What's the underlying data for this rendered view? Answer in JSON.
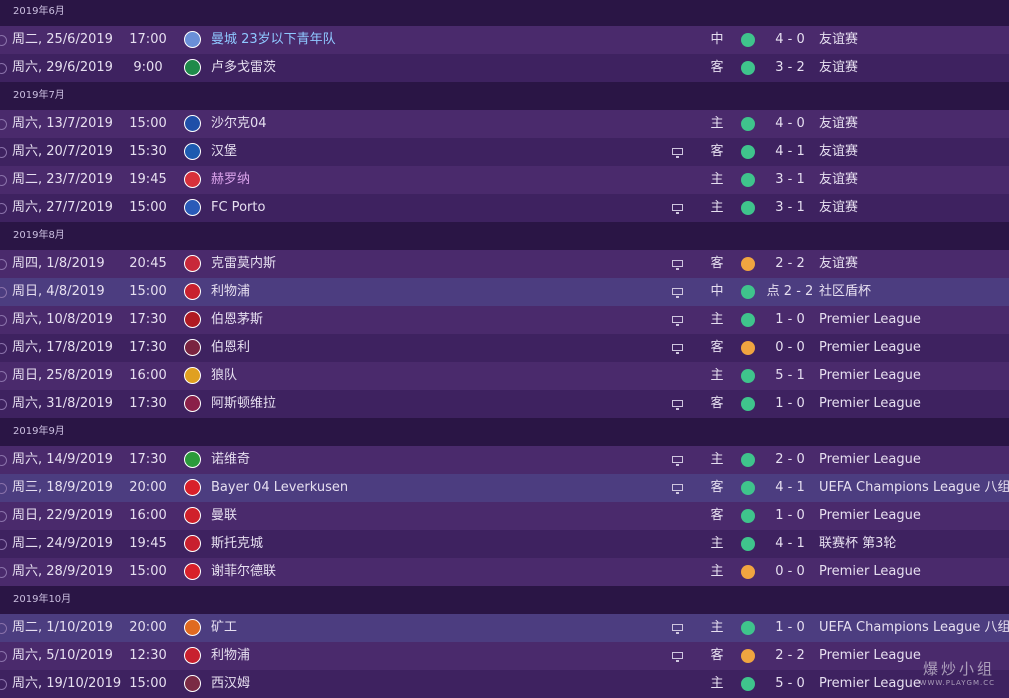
{
  "months": [
    {
      "label": "2019年6月",
      "rows": [
        {
          "date": "周二, 25/6/2019",
          "time": "17:00",
          "opponent": "曼城 23岁以下青年队",
          "opp_color": "#8fc8ff",
          "badge": "#6a8fd8",
          "tv": false,
          "venue": "中",
          "result_color": "#3fc48c",
          "score": "4 - 0",
          "competition": "友谊赛"
        },
        {
          "date": "周六, 29/6/2019",
          "time": "9:00",
          "opponent": "卢多戈雷茨",
          "opp_color": "#e6dff0",
          "badge": "#1f8a4a",
          "tv": false,
          "venue": "客",
          "result_color": "#3fc48c",
          "score": "3 - 2",
          "competition": "友谊赛"
        }
      ]
    },
    {
      "label": "2019年7月",
      "rows": [
        {
          "date": "周六, 13/7/2019",
          "time": "15:00",
          "opponent": "沙尔克04",
          "opp_color": "#e6dff0",
          "badge": "#1f4fa8",
          "tv": false,
          "venue": "主",
          "result_color": "#3fc48c",
          "score": "4 - 0",
          "competition": "友谊赛"
        },
        {
          "date": "周六, 20/7/2019",
          "time": "15:30",
          "opponent": "汉堡",
          "opp_color": "#e6dff0",
          "badge": "#1d5bb0",
          "tv": true,
          "venue": "客",
          "result_color": "#3fc48c",
          "score": "4 - 1",
          "competition": "友谊赛"
        },
        {
          "date": "周二, 23/7/2019",
          "time": "19:45",
          "opponent": "赫罗纳",
          "opp_color": "#d9a2ea",
          "badge": "#d8303a",
          "tv": false,
          "venue": "主",
          "result_color": "#3fc48c",
          "score": "3 - 1",
          "competition": "友谊赛"
        },
        {
          "date": "周六, 27/7/2019",
          "time": "15:00",
          "opponent": "FC Porto",
          "opp_color": "#e6dff0",
          "badge": "#2a5bb8",
          "tv": true,
          "venue": "主",
          "result_color": "#3fc48c",
          "score": "3 - 1",
          "competition": "友谊赛"
        }
      ]
    },
    {
      "label": "2019年8月",
      "rows": [
        {
          "date": "周四, 1/8/2019",
          "time": "20:45",
          "opponent": "克雷莫内斯",
          "opp_color": "#e6dff0",
          "badge": "#c8283a",
          "tv": true,
          "venue": "客",
          "result_color": "#f0a540",
          "score": "2 - 2",
          "competition": "友谊赛"
        },
        {
          "date": "周日, 4/8/2019",
          "time": "15:00",
          "opponent": "利物浦",
          "opp_color": "#e6dff0",
          "badge": "#c8202e",
          "tv": true,
          "venue": "中",
          "result_color": "#3fc48c",
          "score": "点 2 - 2",
          "competition": "社区盾杯",
          "highlight": true
        },
        {
          "date": "周六, 10/8/2019",
          "time": "17:30",
          "opponent": "伯恩茅斯",
          "opp_color": "#e6dff0",
          "badge": "#b01a22",
          "tv": true,
          "venue": "主",
          "result_color": "#3fc48c",
          "score": "1 - 0",
          "competition": "Premier League"
        },
        {
          "date": "周六, 17/8/2019",
          "time": "17:30",
          "opponent": "伯恩利",
          "opp_color": "#e6dff0",
          "badge": "#7a2440",
          "tv": true,
          "venue": "客",
          "result_color": "#f0a540",
          "score": "0 - 0",
          "competition": "Premier League"
        },
        {
          "date": "周日, 25/8/2019",
          "time": "16:00",
          "opponent": "狼队",
          "opp_color": "#e6dff0",
          "badge": "#e0a020",
          "tv": false,
          "venue": "主",
          "result_color": "#3fc48c",
          "score": "5 - 1",
          "competition": "Premier League"
        },
        {
          "date": "周六, 31/8/2019",
          "time": "17:30",
          "opponent": "阿斯顿维拉",
          "opp_color": "#e6dff0",
          "badge": "#8a2048",
          "tv": true,
          "venue": "客",
          "result_color": "#3fc48c",
          "score": "1 - 0",
          "competition": "Premier League"
        }
      ]
    },
    {
      "label": "2019年9月",
      "rows": [
        {
          "date": "周六, 14/9/2019",
          "time": "17:30",
          "opponent": "诺维奇",
          "opp_color": "#e6dff0",
          "badge": "#2a9a3a",
          "tv": true,
          "venue": "主",
          "result_color": "#3fc48c",
          "score": "2 - 0",
          "competition": "Premier League"
        },
        {
          "date": "周三, 18/9/2019",
          "time": "20:00",
          "opponent": "Bayer 04 Leverkusen",
          "opp_color": "#e6dff0",
          "badge": "#d8202a",
          "tv": true,
          "venue": "客",
          "result_color": "#3fc48c",
          "score": "4 - 1",
          "competition": "UEFA Champions League 八组",
          "highlight": true
        },
        {
          "date": "周日, 22/9/2019",
          "time": "16:00",
          "opponent": "曼联",
          "opp_color": "#e6dff0",
          "badge": "#d0202a",
          "tv": false,
          "venue": "客",
          "result_color": "#3fc48c",
          "score": "1 - 0",
          "competition": "Premier League"
        },
        {
          "date": "周二, 24/9/2019",
          "time": "19:45",
          "opponent": "斯托克城",
          "opp_color": "#e6dff0",
          "badge": "#c8202e",
          "tv": false,
          "venue": "主",
          "result_color": "#3fc48c",
          "score": "4 - 1",
          "competition": "联赛杯 第3轮"
        },
        {
          "date": "周六, 28/9/2019",
          "time": "15:00",
          "opponent": "谢菲尔德联",
          "opp_color": "#e6dff0",
          "badge": "#d8202a",
          "tv": false,
          "venue": "主",
          "result_color": "#f0a540",
          "score": "0 - 0",
          "competition": "Premier League"
        }
      ]
    },
    {
      "label": "2019年10月",
      "rows": [
        {
          "date": "周二, 1/10/2019",
          "time": "20:00",
          "opponent": "矿工",
          "opp_color": "#e6dff0",
          "badge": "#e06a20",
          "tv": true,
          "venue": "主",
          "result_color": "#3fc48c",
          "score": "1 - 0",
          "competition": "UEFA Champions League 八组",
          "highlight": true
        },
        {
          "date": "周六, 5/10/2019",
          "time": "12:30",
          "opponent": "利物浦",
          "opp_color": "#e6dff0",
          "badge": "#c8202e",
          "tv": true,
          "venue": "客",
          "result_color": "#f0a540",
          "score": "2 - 2",
          "competition": "Premier League"
        },
        {
          "date": "周六, 19/10/2019",
          "time": "15:00",
          "opponent": "西汉姆",
          "opp_color": "#e6dff0",
          "badge": "#7a2a44",
          "tv": false,
          "venue": "主",
          "result_color": "#3fc48c",
          "score": "5 - 0",
          "competition": "Premier League"
        }
      ]
    }
  ],
  "watermark": {
    "title": "爆炒小组",
    "url": "WWW.PLAYGM.CC"
  }
}
